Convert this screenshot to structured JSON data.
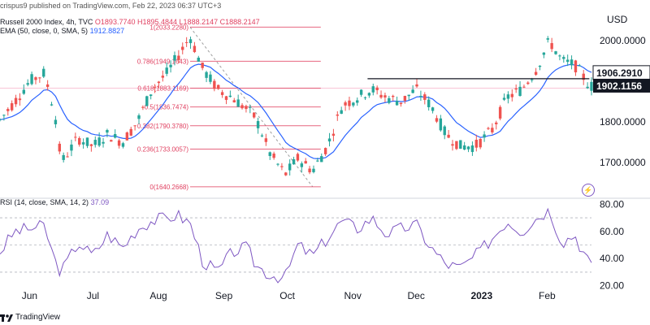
{
  "header": {
    "line1": "crispus9 published on TradingView.com, Feb 22, 2023 06:37 UTC+3",
    "line2_name": "Russell 2000 Index, 4h, TVC",
    "line2_o": "O1893.7740",
    "line2_h": "H1895.4844",
    "line2_l": "L1888.2147",
    "line2_c": "C1888.2147",
    "line3_name": "EMA (50, close, 0, SMA, 5)",
    "line3_val": "1912.8827",
    "currency": "USD"
  },
  "rsi_legend": {
    "name": "RSI (14, close, SMA, 14, 2)",
    "value": "37.09"
  },
  "footer": {
    "logo_text": "TradingView"
  },
  "colors": {
    "up": "#26a69a",
    "down": "#ef5350",
    "ema": "#2962ff",
    "rsi": "#7e57c2",
    "fib": "#e04060",
    "hline": "#131722",
    "price_tag_dark": "#131722"
  },
  "chart_data": [
    {
      "type": "candlestick",
      "title": "Russell 2000 Index, 4h, TVC",
      "y_unit": "USD",
      "ylim": [
        1620,
        2060
      ],
      "yticks": [
        "2000.0000",
        "1900.0000",
        "1800.0000",
        "1700.0000"
      ],
      "ytick_values": [
        2000,
        1900,
        1800,
        1700
      ],
      "xticks": [
        "Jun",
        "Jul",
        "Aug",
        "Sep",
        "Oct",
        "Nov",
        "Dec",
        "2023",
        "Feb"
      ],
      "xtick_dates": [
        "2022-06-01",
        "2022-07-01",
        "2022-08-01",
        "2022-09-01",
        "2022-10-01",
        "2022-11-01",
        "2022-12-01",
        "2023-01-01",
        "2023-02-01"
      ],
      "x_range": [
        "2022-05-18",
        "2023-02-22"
      ],
      "price_labels": [
        {
          "text": "1906.2910",
          "value": 1906.291
        },
        {
          "text": "1902.1156",
          "value": 1902.1156
        }
      ],
      "horizontal_lines": [
        {
          "value": 1906.291,
          "from": "2022-11-08",
          "to": "2023-02-21"
        }
      ],
      "fibonacci": {
        "from_date": "2022-08-16",
        "to_date": "2022-10-13",
        "levels": [
          {
            "label": "1(2033.2280)",
            "value": 2033.228
          },
          {
            "label": "0.786(1949.1643)",
            "value": 1949.1643
          },
          {
            "label": "0.618(1883.1169)",
            "value": 1883.1169
          },
          {
            "label": "0.5(1836.7474)",
            "value": 1836.7474
          },
          {
            "label": "0.382(1790.3780)",
            "value": 1790.378
          },
          {
            "label": "0.236(1733.0057)",
            "value": 1733.0057
          },
          {
            "label": "0(1640.2668)",
            "value": 1640.2668
          }
        ]
      },
      "ema_value": 1912.8827,
      "series": [
        {
          "date": "2022-05-18",
          "close": 1805
        },
        {
          "date": "2022-05-25",
          "close": 1850
        },
        {
          "date": "2022-06-01",
          "close": 1900
        },
        {
          "date": "2022-06-08",
          "close": 1920
        },
        {
          "date": "2022-06-13",
          "close": 1820
        },
        {
          "date": "2022-06-16",
          "close": 1700
        },
        {
          "date": "2022-06-24",
          "close": 1760
        },
        {
          "date": "2022-07-01",
          "close": 1740
        },
        {
          "date": "2022-07-08",
          "close": 1770
        },
        {
          "date": "2022-07-15",
          "close": 1750
        },
        {
          "date": "2022-07-22",
          "close": 1800
        },
        {
          "date": "2022-07-29",
          "close": 1880
        },
        {
          "date": "2022-08-05",
          "close": 1920
        },
        {
          "date": "2022-08-10",
          "close": 1960
        },
        {
          "date": "2022-08-16",
          "close": 2010
        },
        {
          "date": "2022-08-22",
          "close": 1930
        },
        {
          "date": "2022-08-29",
          "close": 1880
        },
        {
          "date": "2022-09-05",
          "close": 1860
        },
        {
          "date": "2022-09-12",
          "close": 1830
        },
        {
          "date": "2022-09-16",
          "close": 1810
        },
        {
          "date": "2022-09-23",
          "close": 1720
        },
        {
          "date": "2022-09-30",
          "close": 1670
        },
        {
          "date": "2022-10-06",
          "close": 1710
        },
        {
          "date": "2022-10-13",
          "close": 1680
        },
        {
          "date": "2022-10-20",
          "close": 1740
        },
        {
          "date": "2022-10-27",
          "close": 1840
        },
        {
          "date": "2022-11-03",
          "close": 1860
        },
        {
          "date": "2022-11-10",
          "close": 1880
        },
        {
          "date": "2022-11-17",
          "close": 1860
        },
        {
          "date": "2022-11-24",
          "close": 1850
        },
        {
          "date": "2022-12-01",
          "close": 1880
        },
        {
          "date": "2022-12-08",
          "close": 1840
        },
        {
          "date": "2022-12-15",
          "close": 1770
        },
        {
          "date": "2022-12-22",
          "close": 1740
        },
        {
          "date": "2022-12-29",
          "close": 1740
        },
        {
          "date": "2023-01-06",
          "close": 1780
        },
        {
          "date": "2023-01-13",
          "close": 1860
        },
        {
          "date": "2023-01-20",
          "close": 1880
        },
        {
          "date": "2023-01-27",
          "close": 1930
        },
        {
          "date": "2023-02-02",
          "close": 2000
        },
        {
          "date": "2023-02-08",
          "close": 1950
        },
        {
          "date": "2023-02-14",
          "close": 1940
        },
        {
          "date": "2023-02-17",
          "close": 1920
        },
        {
          "date": "2023-02-21",
          "close": 1888
        }
      ]
    },
    {
      "type": "line",
      "title": "RSI (14, close, SMA, 14, 2)",
      "ylim": [
        18,
        82
      ],
      "yticks": [
        "80.00",
        "60.00",
        "40.00",
        "20.00"
      ],
      "ytick_values": [
        80,
        60,
        40,
        20
      ],
      "band_levels": [
        70,
        50,
        30
      ],
      "series": [
        {
          "date": "2022-05-18",
          "value": 45
        },
        {
          "date": "2022-05-25",
          "value": 60
        },
        {
          "date": "2022-06-01",
          "value": 62
        },
        {
          "date": "2022-06-08",
          "value": 64
        },
        {
          "date": "2022-06-13",
          "value": 38
        },
        {
          "date": "2022-06-16",
          "value": 30
        },
        {
          "date": "2022-06-24",
          "value": 52
        },
        {
          "date": "2022-07-01",
          "value": 42
        },
        {
          "date": "2022-07-08",
          "value": 58
        },
        {
          "date": "2022-07-15",
          "value": 48
        },
        {
          "date": "2022-07-22",
          "value": 62
        },
        {
          "date": "2022-07-29",
          "value": 68
        },
        {
          "date": "2022-08-05",
          "value": 70
        },
        {
          "date": "2022-08-10",
          "value": 72
        },
        {
          "date": "2022-08-16",
          "value": 66
        },
        {
          "date": "2022-08-22",
          "value": 38
        },
        {
          "date": "2022-08-29",
          "value": 30
        },
        {
          "date": "2022-09-05",
          "value": 45
        },
        {
          "date": "2022-09-12",
          "value": 48
        },
        {
          "date": "2022-09-16",
          "value": 35
        },
        {
          "date": "2022-09-23",
          "value": 28
        },
        {
          "date": "2022-09-30",
          "value": 26
        },
        {
          "date": "2022-10-06",
          "value": 50
        },
        {
          "date": "2022-10-13",
          "value": 42
        },
        {
          "date": "2022-10-20",
          "value": 55
        },
        {
          "date": "2022-10-27",
          "value": 68
        },
        {
          "date": "2022-11-03",
          "value": 62
        },
        {
          "date": "2022-11-10",
          "value": 70
        },
        {
          "date": "2022-11-17",
          "value": 58
        },
        {
          "date": "2022-11-24",
          "value": 62
        },
        {
          "date": "2022-12-01",
          "value": 65
        },
        {
          "date": "2022-12-08",
          "value": 48
        },
        {
          "date": "2022-12-15",
          "value": 36
        },
        {
          "date": "2022-12-22",
          "value": 33
        },
        {
          "date": "2022-12-29",
          "value": 42
        },
        {
          "date": "2023-01-06",
          "value": 55
        },
        {
          "date": "2023-01-13",
          "value": 68
        },
        {
          "date": "2023-01-20",
          "value": 60
        },
        {
          "date": "2023-01-27",
          "value": 70
        },
        {
          "date": "2023-02-02",
          "value": 76
        },
        {
          "date": "2023-02-08",
          "value": 52
        },
        {
          "date": "2023-02-14",
          "value": 58
        },
        {
          "date": "2023-02-17",
          "value": 48
        },
        {
          "date": "2023-02-21",
          "value": 37
        }
      ]
    }
  ]
}
